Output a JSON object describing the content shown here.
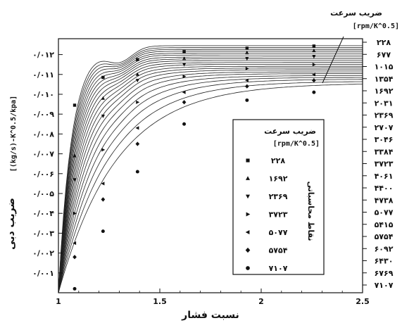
{
  "chart_data": {
    "type": "line",
    "title": "",
    "xlabel": "نسبت فشار",
    "ylabel": "ضریب دبی",
    "ylabel_unit": "[(kg/s)-K^0.5/kpa]",
    "xlim": [
      1,
      2.5
    ],
    "ylim": [
      0,
      0.0128
    ],
    "x_ticks": [
      {
        "value": 1,
        "label": "1"
      },
      {
        "value": 1.5,
        "label": "1.5"
      },
      {
        "value": 2,
        "label": "2"
      },
      {
        "value": 2.5,
        "label": "2.5"
      }
    ],
    "y_ticks": [
      {
        "value": 0.001,
        "label": "۰/۰۰۱"
      },
      {
        "value": 0.002,
        "label": "۰/۰۰۲"
      },
      {
        "value": 0.003,
        "label": "۰/۰۰۳"
      },
      {
        "value": 0.004,
        "label": "۰/۰۰۴"
      },
      {
        "value": 0.005,
        "label": "۰/۰۰۵"
      },
      {
        "value": 0.006,
        "label": "۰/۰۰۶"
      },
      {
        "value": 0.007,
        "label": "۰/۰۰۷"
      },
      {
        "value": 0.008,
        "label": "۰/۰۰۸"
      },
      {
        "value": 0.009,
        "label": "۰/۰۰۹"
      },
      {
        "value": 0.01,
        "label": "۰/۰۱۰"
      },
      {
        "value": 0.011,
        "label": "۰/۰۱۱"
      },
      {
        "value": 0.012,
        "label": "۰/۰۱۲"
      }
    ],
    "series_header": "ضریب سرعت",
    "series_header_unit": "[rpm/K^0.5]",
    "series": [
      {
        "name": "۲۲۸",
        "asymptote": 0.01245
      },
      {
        "name": "۶۷۷",
        "asymptote": 0.01235
      },
      {
        "name": "۱۰۱۵",
        "asymptote": 0.01226
      },
      {
        "name": "۱۳۵۴",
        "asymptote": 0.01217
      },
      {
        "name": "۱۶۹۲",
        "asymptote": 0.01207
      },
      {
        "name": "۲۰۳۱",
        "asymptote": 0.01198
      },
      {
        "name": "۲۳۶۹",
        "asymptote": 0.01188
      },
      {
        "name": "۲۷۰۷",
        "asymptote": 0.01179
      },
      {
        "name": "۳۰۴۶",
        "asymptote": 0.0117
      },
      {
        "name": "۳۳۸۴",
        "asymptote": 0.0116
      },
      {
        "name": "۳۷۲۳",
        "asymptote": 0.01151
      },
      {
        "name": "۴۰۶۱",
        "asymptote": 0.01141
      },
      {
        "name": "۴۴۰۰",
        "asymptote": 0.01132
      },
      {
        "name": "۴۷۳۸",
        "asymptote": 0.01123
      },
      {
        "name": "۵۰۷۷",
        "asymptote": 0.01113
      },
      {
        "name": "۵۴۱۵",
        "asymptote": 0.01104
      },
      {
        "name": "۵۷۵۴",
        "asymptote": 0.01094
      },
      {
        "name": "۶۰۹۲",
        "asymptote": 0.01085
      },
      {
        "name": "۶۴۳۰",
        "asymptote": 0.01076
      },
      {
        "name": "۶۷۶۹",
        "asymptote": 0.01066
      },
      {
        "name": "۷۱۰۷",
        "asymptote": 0.01057
      }
    ],
    "computed_points": {
      "x": [
        1.08,
        1.22,
        1.39,
        1.62,
        1.93,
        2.26
      ],
      "series": [
        {
          "name": "۲۲۸",
          "marker": "square",
          "y": [
            0.00945,
            0.01085,
            0.01175,
            0.01215,
            0.01232,
            0.01243
          ]
        },
        {
          "name": "۱۶۹۲",
          "marker": "triangle-up",
          "y": [
            0.0069,
            0.0098,
            0.011,
            0.0118,
            0.0121,
            0.0122
          ]
        },
        {
          "name": "۲۳۶۹",
          "marker": "triangle-down",
          "y": [
            0.0057,
            0.0089,
            0.0107,
            0.0115,
            0.0118,
            0.0119
          ]
        },
        {
          "name": "۳۷۲۳",
          "marker": "triangle-right",
          "y": [
            0.004,
            0.0072,
            0.0096,
            0.0109,
            0.0113,
            0.0115
          ]
        },
        {
          "name": "۵۰۷۷",
          "marker": "triangle-left",
          "y": [
            0.0025,
            0.0055,
            0.0083,
            0.0101,
            0.0107,
            0.011
          ]
        },
        {
          "name": "۵۷۵۴",
          "marker": "diamond",
          "y": [
            0.0018,
            0.0047,
            0.0075,
            0.0096,
            0.0104,
            0.0107
          ]
        },
        {
          "name": "۷۱۰۷",
          "marker": "circle",
          "y": [
            0.0002,
            0.0031,
            0.0061,
            0.0085,
            0.0097,
            0.0101
          ]
        }
      ]
    },
    "legend": {
      "placement": "center-right",
      "title": "ضریب سرعت",
      "unit": "[rpm/K^0.5]",
      "side_label": "نقاط محاسباتی"
    }
  }
}
